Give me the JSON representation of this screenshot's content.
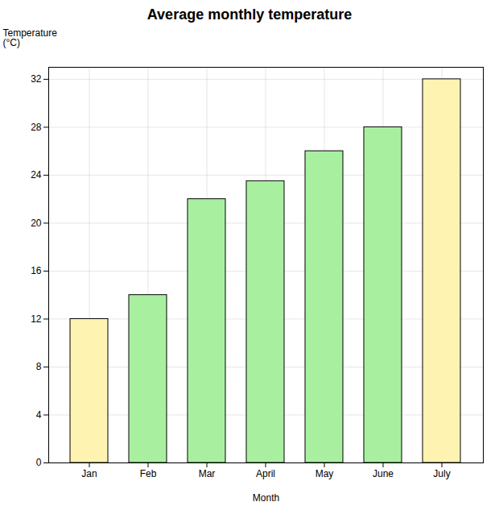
{
  "chart_data": {
    "type": "bar",
    "title": "Average monthly temperature",
    "xlabel": "Month",
    "ylabel": "Temperature\n(°C)",
    "categories": [
      "Jan",
      "Feb",
      "Mar",
      "April",
      "May",
      "June",
      "July"
    ],
    "values": [
      12,
      14,
      22,
      23.5,
      26,
      28,
      32
    ],
    "colors": [
      "#FEF3B0",
      "#A8F0A0",
      "#A8F0A0",
      "#A8F0A0",
      "#A8F0A0",
      "#A8F0A0",
      "#FEF3B0"
    ],
    "ylim": [
      0,
      33
    ],
    "yticks": [
      0,
      4,
      8,
      12,
      16,
      20,
      24,
      28,
      32
    ],
    "grid": true
  }
}
